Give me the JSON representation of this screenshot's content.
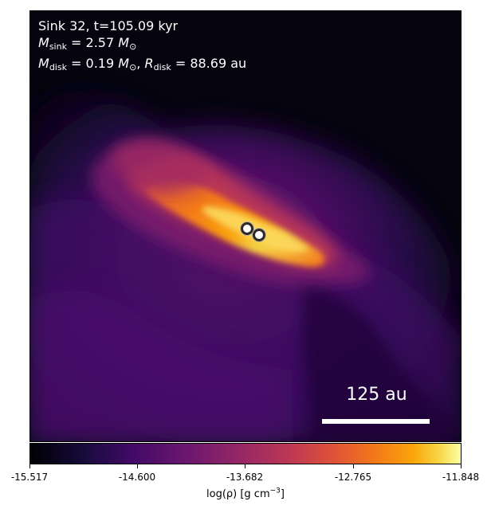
{
  "overlay": {
    "line_1": "Sink 32, t=105.09 kyr",
    "mass_symbol": "M",
    "sink_subscript": "sink",
    "sink_value": "= 2.57",
    "sun_symbol": "⊙",
    "disk_subscript": "disk",
    "disk_mass_value": "= 0.19",
    "separator": ", ",
    "radius_symbol": "R",
    "radius_value": "= 88.69",
    "radius_unit": "au"
  },
  "scale_bar": {
    "label": "125 au",
    "fraction_of_frame": 0.25
  },
  "colorbar": {
    "colormap": "inferno",
    "min": -15.517,
    "max": -11.848,
    "ticks": [
      "-15.517",
      "-14.600",
      "-13.682",
      "-12.765",
      "-11.848"
    ],
    "label_prefix": "log(ρ) [g cm",
    "label_exponent": "−3",
    "label_suffix": "]"
  },
  "markers": {
    "count": 2,
    "type": "sink-particles"
  },
  "colors": {
    "background": "#05040f",
    "text": "#ffffff",
    "marker_fill": "#ffffff",
    "marker_edge": "#2f2a25"
  }
}
